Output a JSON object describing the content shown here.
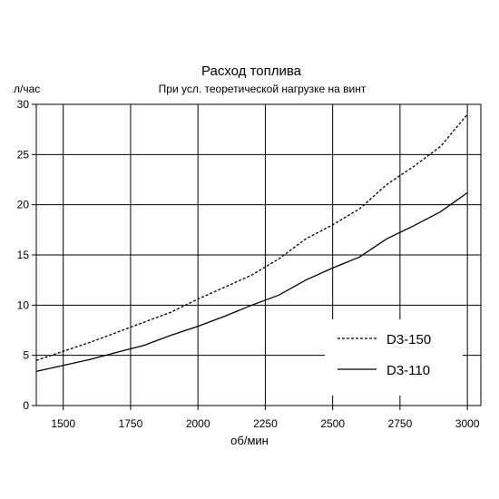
{
  "chart_data": {
    "type": "line",
    "title": "Расход топлива",
    "subtitle": "При усл. теоретической нагрузке на винт",
    "xlabel": "об/мин",
    "ylabel": "л/час",
    "xlim": [
      1400,
      3050
    ],
    "ylim": [
      0,
      30
    ],
    "x_ticks": [
      1500,
      1750,
      2000,
      2250,
      2500,
      2750,
      3000
    ],
    "y_ticks": [
      0,
      5,
      10,
      15,
      20,
      25,
      30
    ],
    "grid": true,
    "legend_position": "bottom-right",
    "series": [
      {
        "name": "D3-150",
        "line_style": "dotted",
        "color": "#000000",
        "x": [
          1400,
          1500,
          1600,
          1700,
          1800,
          1900,
          2000,
          2100,
          2200,
          2300,
          2400,
          2500,
          2600,
          2700,
          2800,
          2900,
          3000
        ],
        "y": [
          4.5,
          5.4,
          6.3,
          7.3,
          8.3,
          9.3,
          10.6,
          11.8,
          13.0,
          14.6,
          16.6,
          18.0,
          19.6,
          22.0,
          23.8,
          25.8,
          29.0
        ]
      },
      {
        "name": "D3-110",
        "line_style": "solid",
        "color": "#000000",
        "x": [
          1400,
          1500,
          1600,
          1700,
          1800,
          1900,
          2000,
          2100,
          2200,
          2300,
          2400,
          2500,
          2600,
          2700,
          2800,
          2900,
          3000
        ],
        "y": [
          3.4,
          4.0,
          4.6,
          5.3,
          6.0,
          7.0,
          7.9,
          8.9,
          10.0,
          11.0,
          12.5,
          13.7,
          14.8,
          16.6,
          17.9,
          19.3,
          21.2
        ]
      }
    ]
  }
}
